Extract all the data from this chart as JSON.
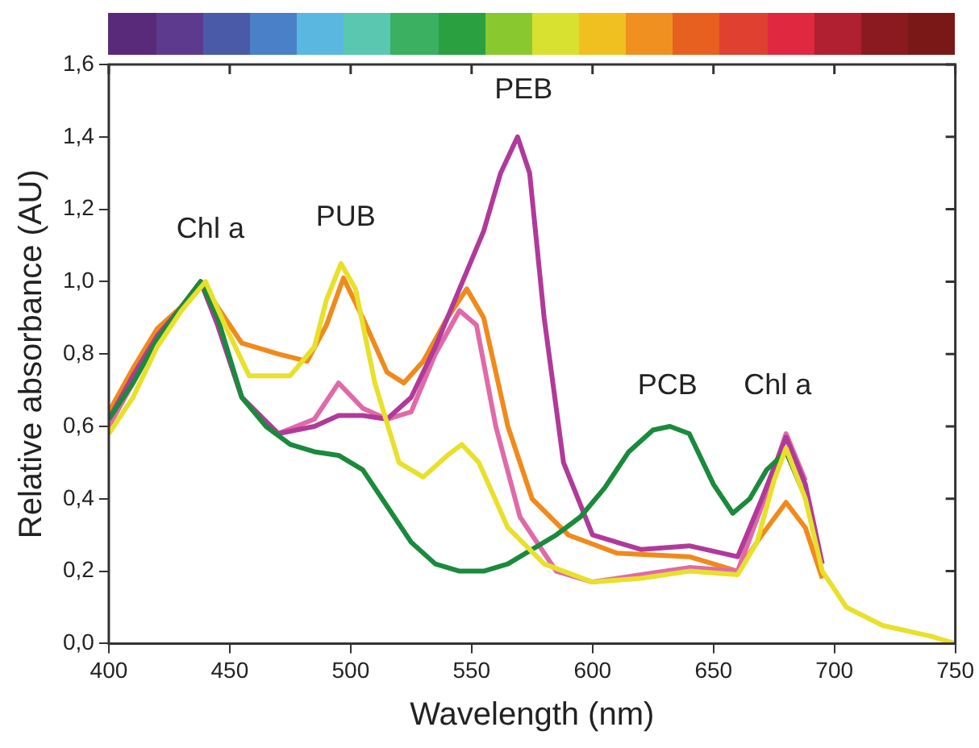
{
  "chart_data": {
    "type": "line",
    "xlabel": "Wavelength (nm)",
    "ylabel": "Relative absorbance (AU)",
    "xlim": [
      400,
      750
    ],
    "xticks": [
      400,
      450,
      500,
      550,
      600,
      650,
      700,
      750
    ],
    "ylim": [
      0,
      1.6
    ],
    "yticks": [
      {
        "value": 0,
        "label": "0,0"
      },
      {
        "value": 0.2,
        "label": "0,2"
      },
      {
        "value": 0.4,
        "label": "0,4"
      },
      {
        "value": 0.6,
        "label": "0,6"
      },
      {
        "value": 0.8,
        "label": "0,8"
      },
      {
        "value": 1,
        "label": "1,0"
      },
      {
        "value": 1.2,
        "label": "1,2"
      },
      {
        "value": 1.4,
        "label": "1,4"
      },
      {
        "value": 1.6,
        "label": "1,6"
      }
    ],
    "grid": false,
    "legend": false,
    "marker": "none",
    "line_style": "solid",
    "annotations": [
      "Chl a",
      "PUB",
      "PEB",
      "PCB",
      "Chl a"
    ],
    "series": [
      {
        "color": "#e8e02a",
        "x": [
          400,
          410,
          420,
          430,
          440,
          448,
          458,
          475,
          485,
          490,
          496,
          502,
          510,
          520,
          530,
          540,
          546,
          553,
          565,
          580,
          600,
          620,
          640,
          660,
          668,
          675,
          680,
          688,
          695,
          705,
          720,
          740,
          750
        ],
        "values": [
          0.58,
          0.68,
          0.82,
          0.92,
          1.0,
          0.88,
          0.74,
          0.74,
          0.82,
          0.95,
          1.05,
          0.98,
          0.72,
          0.5,
          0.46,
          0.52,
          0.55,
          0.5,
          0.32,
          0.22,
          0.17,
          0.18,
          0.2,
          0.19,
          0.28,
          0.45,
          0.54,
          0.4,
          0.2,
          0.1,
          0.05,
          0.02,
          0.0
        ]
      },
      {
        "color": "#1a8a3c",
        "x": [
          400,
          410,
          420,
          430,
          438,
          445,
          455,
          465,
          475,
          485,
          495,
          505,
          515,
          525,
          535,
          545,
          555,
          565,
          575,
          585,
          595,
          605,
          615,
          625,
          632,
          640,
          650,
          658,
          665,
          672,
          680,
          687
        ],
        "values": [
          0.62,
          0.72,
          0.84,
          0.93,
          1.0,
          0.9,
          0.68,
          0.6,
          0.55,
          0.53,
          0.52,
          0.48,
          0.38,
          0.28,
          0.22,
          0.2,
          0.2,
          0.22,
          0.26,
          0.3,
          0.35,
          0.43,
          0.53,
          0.59,
          0.6,
          0.58,
          0.44,
          0.36,
          0.4,
          0.48,
          0.53,
          0.42
        ]
      },
      {
        "color": "#b03a9a",
        "x": [
          400,
          410,
          420,
          430,
          438,
          445,
          455,
          470,
          485,
          495,
          505,
          515,
          525,
          535,
          545,
          555,
          562,
          569,
          574,
          580,
          588,
          600,
          620,
          640,
          660,
          670,
          680,
          688,
          695
        ],
        "values": [
          0.62,
          0.74,
          0.85,
          0.93,
          1.0,
          0.88,
          0.68,
          0.58,
          0.6,
          0.63,
          0.63,
          0.62,
          0.68,
          0.82,
          0.98,
          1.14,
          1.3,
          1.4,
          1.3,
          0.9,
          0.5,
          0.3,
          0.26,
          0.27,
          0.24,
          0.4,
          0.57,
          0.44,
          0.22
        ]
      },
      {
        "color": "#e06aa8",
        "x": [
          400,
          410,
          420,
          430,
          438,
          445,
          455,
          470,
          485,
          495,
          505,
          515,
          525,
          535,
          545,
          552,
          560,
          570,
          585,
          600,
          620,
          640,
          660,
          670,
          680,
          688
        ],
        "values": [
          0.6,
          0.72,
          0.84,
          0.93,
          1.0,
          0.88,
          0.68,
          0.58,
          0.62,
          0.72,
          0.65,
          0.62,
          0.64,
          0.8,
          0.92,
          0.88,
          0.6,
          0.35,
          0.2,
          0.17,
          0.19,
          0.21,
          0.2,
          0.38,
          0.58,
          0.45
        ]
      },
      {
        "color": "#f08a1c",
        "x": [
          400,
          410,
          420,
          430,
          438,
          445,
          455,
          470,
          482,
          490,
          497,
          505,
          515,
          522,
          530,
          540,
          548,
          555,
          565,
          575,
          590,
          610,
          640,
          660,
          670,
          680,
          688,
          695
        ],
        "values": [
          0.64,
          0.76,
          0.87,
          0.93,
          1.0,
          0.93,
          0.83,
          0.8,
          0.78,
          0.88,
          1.01,
          0.9,
          0.75,
          0.72,
          0.78,
          0.9,
          0.98,
          0.9,
          0.6,
          0.4,
          0.3,
          0.25,
          0.24,
          0.2,
          0.3,
          0.39,
          0.32,
          0.18
        ]
      }
    ]
  }
}
